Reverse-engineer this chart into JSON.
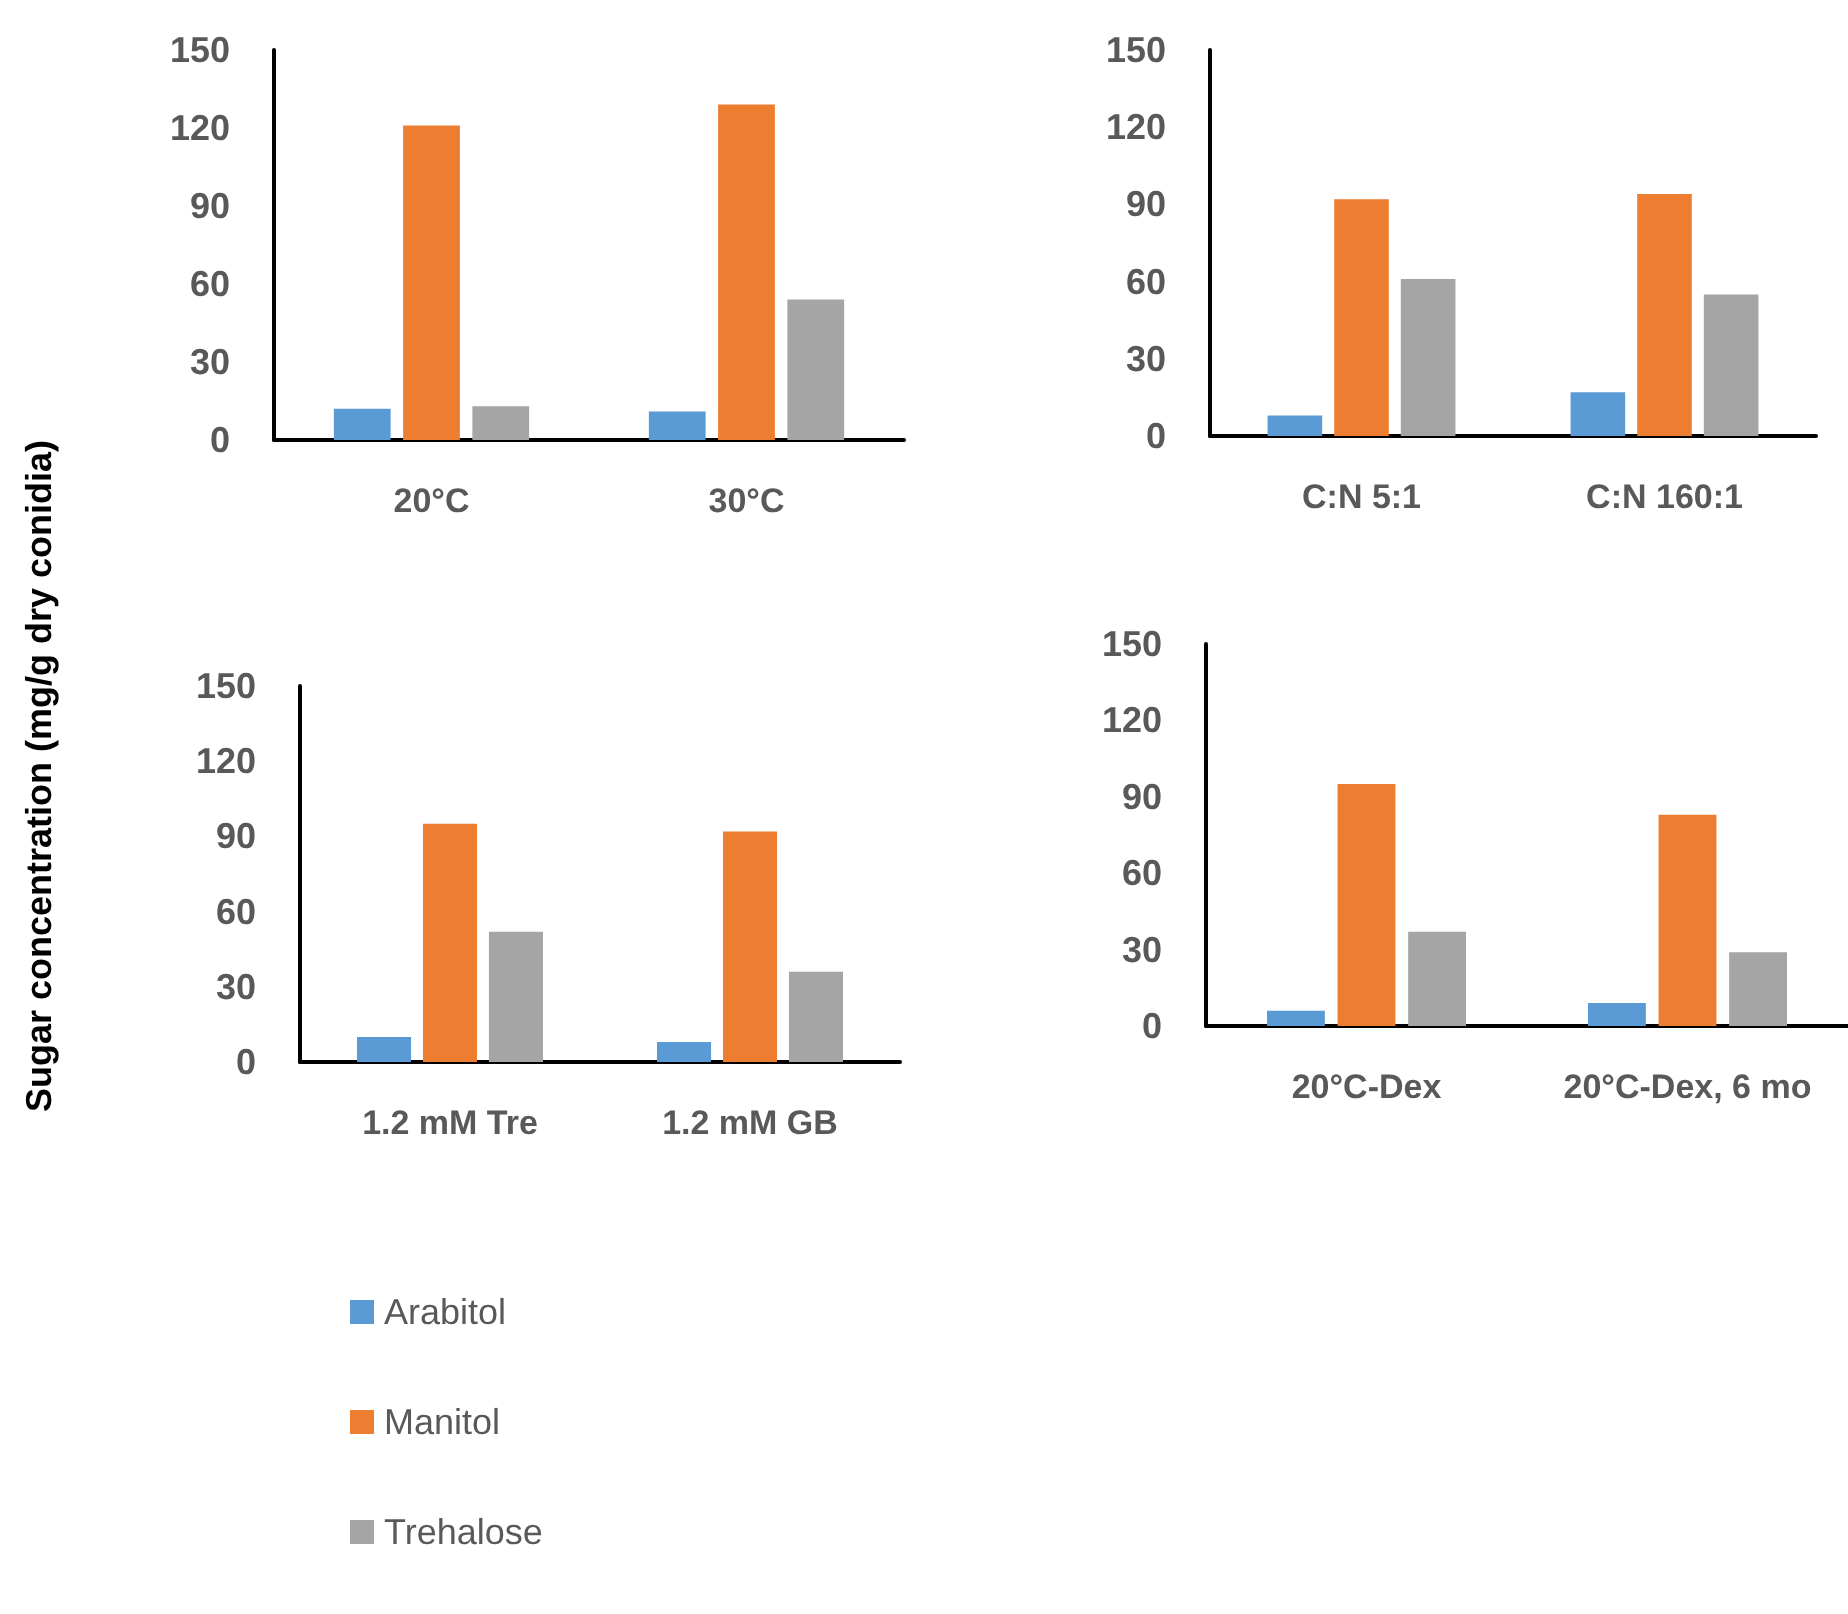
{
  "chart_data": [
    {
      "type": "bar",
      "ylabel": "Sugar concentration (mg/g dry conidia)",
      "categories": [
        "20°C",
        "30°C"
      ],
      "series": [
        {
          "color": "#5b9bd5",
          "values": [
            12,
            11
          ]
        },
        {
          "color": "#ed7d31",
          "values": [
            121,
            129
          ]
        },
        {
          "color": "#a5a5a5",
          "values": [
            13,
            54
          ]
        }
      ],
      "ylim": [
        0,
        150
      ],
      "yticks": [
        0,
        30,
        60,
        90,
        120,
        150
      ],
      "grid": false,
      "legend": false
    },
    {
      "type": "bar",
      "categories": [
        "C:N 5:1",
        "C:N 160:1"
      ],
      "series": [
        {
          "color": "#5b9bd5",
          "values": [
            8,
            17
          ]
        },
        {
          "color": "#ed7d31",
          "values": [
            92,
            94
          ]
        },
        {
          "color": "#a5a5a5",
          "values": [
            61,
            55
          ]
        }
      ],
      "ylim": [
        0,
        150
      ],
      "yticks": [
        0,
        30,
        60,
        90,
        120,
        150
      ],
      "grid": false,
      "legend": false
    },
    {
      "type": "bar",
      "categories": [
        "1.2 mM Tre",
        "1.2 mM GB"
      ],
      "series": [
        {
          "name": "Arabitol",
          "color": "#5b9bd5",
          "values": [
            10,
            8
          ]
        },
        {
          "name": "Manitol",
          "color": "#ed7d31",
          "values": [
            95,
            92
          ]
        },
        {
          "name": "Trehalose",
          "color": "#a5a5a5",
          "values": [
            52,
            36
          ]
        }
      ],
      "ylim": [
        0,
        150
      ],
      "yticks": [
        0,
        30,
        60,
        90,
        120,
        150
      ],
      "grid": false,
      "legend": "bottom"
    },
    {
      "type": "bar",
      "categories": [
        "20°C-Dex",
        "20°C-Dex, 6 mo"
      ],
      "series": [
        {
          "color": "#5b9bd5",
          "values": [
            6,
            9
          ]
        },
        {
          "color": "#ed7d31",
          "values": [
            95,
            83
          ]
        },
        {
          "color": "#a5a5a5",
          "values": [
            37,
            29
          ]
        }
      ],
      "ylim": [
        0,
        150
      ],
      "yticks": [
        0,
        30,
        60,
        90,
        120,
        150
      ],
      "grid": false,
      "legend": false
    }
  ]
}
